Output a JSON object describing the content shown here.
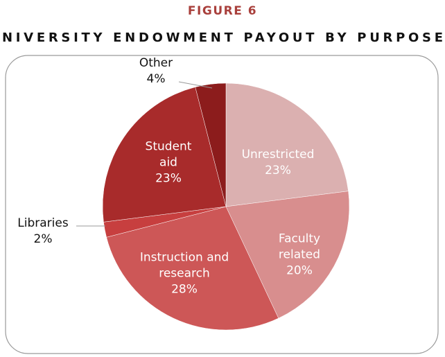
{
  "chart_data": {
    "type": "pie",
    "title": "FIGURE 6",
    "subtitle": "NIVERSITY ENDOWMENT PAYOUT BY PURPOSE",
    "categories": [
      "Unrestricted",
      "Faculty related",
      "Instruction and research",
      "Libraries",
      "Student aid",
      "Other"
    ],
    "values": [
      23,
      20,
      28,
      2,
      23,
      4
    ],
    "value_labels": [
      "23%",
      "20%",
      "28%",
      "2%",
      "23%",
      "4%"
    ],
    "colors": [
      "#dbb0b0",
      "#d88e8e",
      "#cd5757",
      "#c73f3f",
      "#a82b2b",
      "#8c1c1c"
    ],
    "start_angle": 0,
    "direction": "clockwise"
  }
}
